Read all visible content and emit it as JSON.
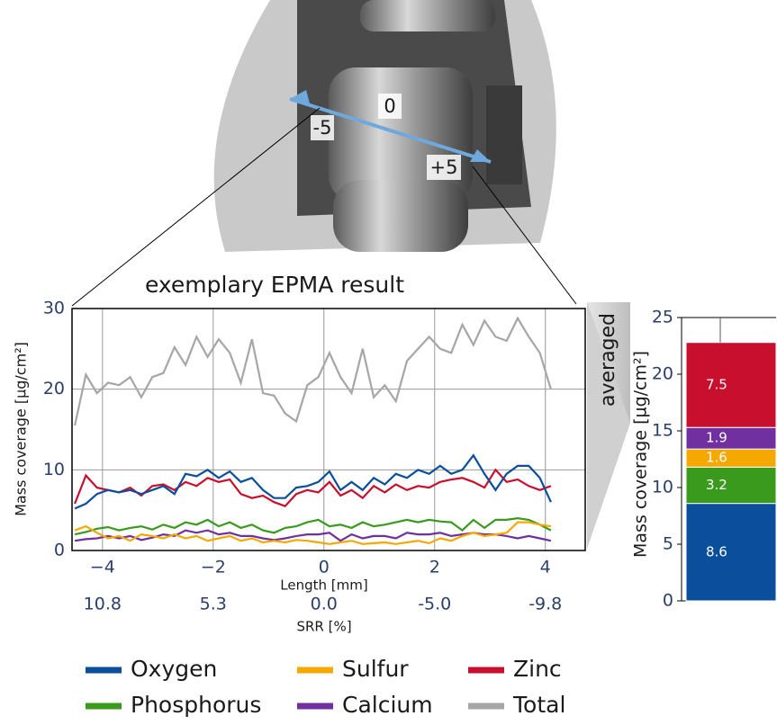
{
  "photo": {
    "markers": [
      "-5",
      "0",
      "+5"
    ]
  },
  "annotation": "averaged",
  "chart_data": [
    {
      "type": "line",
      "title": "exemplary EPMA result",
      "x_label": "Length [mm]",
      "y_label": "Mass coverage [µg/cm²]",
      "x2_label": "SRR [%]",
      "x": [
        -4.5,
        -4.3,
        -4.1,
        -3.9,
        -3.7,
        -3.5,
        -3.3,
        -3.1,
        -2.9,
        -2.7,
        -2.5,
        -2.3,
        -2.1,
        -1.9,
        -1.7,
        -1.5,
        -1.3,
        -1.1,
        -0.9,
        -0.7,
        -0.5,
        -0.3,
        -0.1,
        0.1,
        0.3,
        0.5,
        0.7,
        0.9,
        1.1,
        1.3,
        1.5,
        1.7,
        1.9,
        2.1,
        2.3,
        2.5,
        2.7,
        2.9,
        3.1,
        3.3,
        3.5,
        3.7,
        3.9,
        4.1
      ],
      "xlim": [
        -4.55,
        4.72
      ],
      "ylim": [
        0,
        30
      ],
      "xticks": [
        {
          "value": -4,
          "label": "−4"
        },
        {
          "value": -2,
          "label": "−2"
        },
        0,
        2,
        4
      ],
      "x2ticks": [
        10.8,
        5.3,
        {
          "value": 0,
          "label": "0.0"
        },
        {
          "value": -5,
          "label": "-5.0"
        },
        -9.8
      ],
      "yticks": [
        0,
        10,
        20,
        30
      ],
      "grid": true,
      "legend": "bottom",
      "series": [
        {
          "name": "Oxygen",
          "color": "#0b4f9c",
          "values": [
            5.2,
            5.8,
            7.0,
            7.5,
            7.2,
            7.5,
            7.0,
            7.5,
            8.0,
            7.0,
            9.5,
            9.2,
            10.0,
            9.0,
            9.8,
            8.5,
            9.0,
            7.5,
            6.5,
            6.5,
            7.8,
            8.0,
            8.5,
            9.8,
            7.5,
            8.5,
            7.5,
            9.0,
            8.2,
            9.5,
            9.0,
            10.0,
            9.5,
            10.5,
            9.5,
            10.0,
            11.8,
            9.5,
            7.5,
            9.5,
            10.5,
            10.5,
            9.0,
            6.0
          ]
        },
        {
          "name": "Sulfur",
          "color": "#f5a800",
          "values": [
            2.5,
            3.0,
            2.2,
            1.5,
            1.8,
            1.2,
            2.0,
            1.8,
            1.5,
            2.0,
            1.5,
            1.8,
            1.2,
            1.5,
            1.8,
            1.2,
            1.5,
            1.0,
            1.2,
            1.0,
            1.3,
            1.2,
            1.0,
            0.8,
            1.0,
            1.2,
            0.8,
            0.9,
            1.0,
            0.8,
            1.0,
            1.2,
            0.9,
            1.5,
            1.2,
            1.8,
            2.2,
            1.8,
            2.0,
            2.2,
            3.5,
            3.5,
            3.2,
            3.0
          ]
        },
        {
          "name": "Zinc",
          "color": "#c8102e",
          "values": [
            5.8,
            9.3,
            7.8,
            7.5,
            7.2,
            7.8,
            6.8,
            8.0,
            8.2,
            7.5,
            8.5,
            8.0,
            9.0,
            8.5,
            8.8,
            7.0,
            6.5,
            6.8,
            6.0,
            5.5,
            7.0,
            7.5,
            7.2,
            8.5,
            6.8,
            7.5,
            6.5,
            8.0,
            7.2,
            8.2,
            7.5,
            8.0,
            7.8,
            8.5,
            8.8,
            9.0,
            8.5,
            7.8,
            10.0,
            8.5,
            8.8,
            8.0,
            7.5,
            8.0
          ]
        },
        {
          "name": "Phosphorus",
          "color": "#3a9a1e",
          "values": [
            2.0,
            2.3,
            2.7,
            2.9,
            2.5,
            2.8,
            3.0,
            2.6,
            3.2,
            2.8,
            3.5,
            3.2,
            3.8,
            3.0,
            3.5,
            2.8,
            3.2,
            2.5,
            2.2,
            2.8,
            3.0,
            3.5,
            3.8,
            3.0,
            3.2,
            2.8,
            3.5,
            3.0,
            3.2,
            3.5,
            3.8,
            3.5,
            3.8,
            3.6,
            3.5,
            2.5,
            3.8,
            2.8,
            3.8,
            3.8,
            4.0,
            3.8,
            3.2,
            2.5
          ]
        },
        {
          "name": "Calcium",
          "color": "#7030a0",
          "values": [
            1.2,
            1.4,
            1.5,
            1.8,
            1.5,
            1.8,
            1.3,
            1.6,
            2.0,
            1.8,
            2.5,
            2.2,
            2.5,
            2.0,
            2.2,
            1.8,
            1.8,
            1.5,
            1.3,
            1.5,
            1.8,
            2.0,
            2.0,
            2.2,
            1.2,
            2.0,
            1.5,
            1.8,
            1.8,
            1.5,
            2.2,
            2.0,
            2.0,
            2.2,
            1.8,
            2.0,
            2.2,
            2.0,
            2.0,
            1.8,
            1.5,
            1.8,
            1.5,
            1.2
          ]
        },
        {
          "name": "Total",
          "color": "#a6a6a6",
          "values": [
            15.5,
            21.8,
            19.5,
            20.8,
            20.5,
            21.5,
            19.0,
            21.5,
            22.0,
            25.2,
            23.0,
            26.5,
            24.0,
            26.2,
            24.5,
            20.8,
            26.2,
            19.5,
            19.2,
            17.0,
            16.0,
            20.5,
            21.5,
            24.5,
            21.5,
            19.5,
            25.0,
            19.0,
            20.5,
            18.5,
            23.5,
            25.0,
            26.5,
            25.0,
            24.5,
            28.0,
            25.5,
            28.5,
            26.5,
            26.0,
            28.8,
            26.5,
            24.5,
            20.0
          ]
        }
      ]
    },
    {
      "type": "stacked_bar",
      "y_label": "Mass coverage [µg/cm²]",
      "categories": [
        null
      ],
      "ylim": [
        0,
        25
      ],
      "yticks": [
        0,
        5,
        10,
        15,
        20,
        25
      ],
      "series": [
        {
          "name": "Oxygen",
          "color": "#0b4f9c",
          "values": [
            8.6
          ]
        },
        {
          "name": "Phosphorus",
          "color": "#3a9a1e",
          "values": [
            3.2
          ]
        },
        {
          "name": "Sulfur",
          "color": "#f5a800",
          "values": [
            1.6
          ]
        },
        {
          "name": "Calcium",
          "color": "#7030a0",
          "values": [
            1.9
          ]
        },
        {
          "name": "Zinc",
          "color": "#c8102e",
          "values": [
            7.5
          ]
        }
      ]
    }
  ]
}
